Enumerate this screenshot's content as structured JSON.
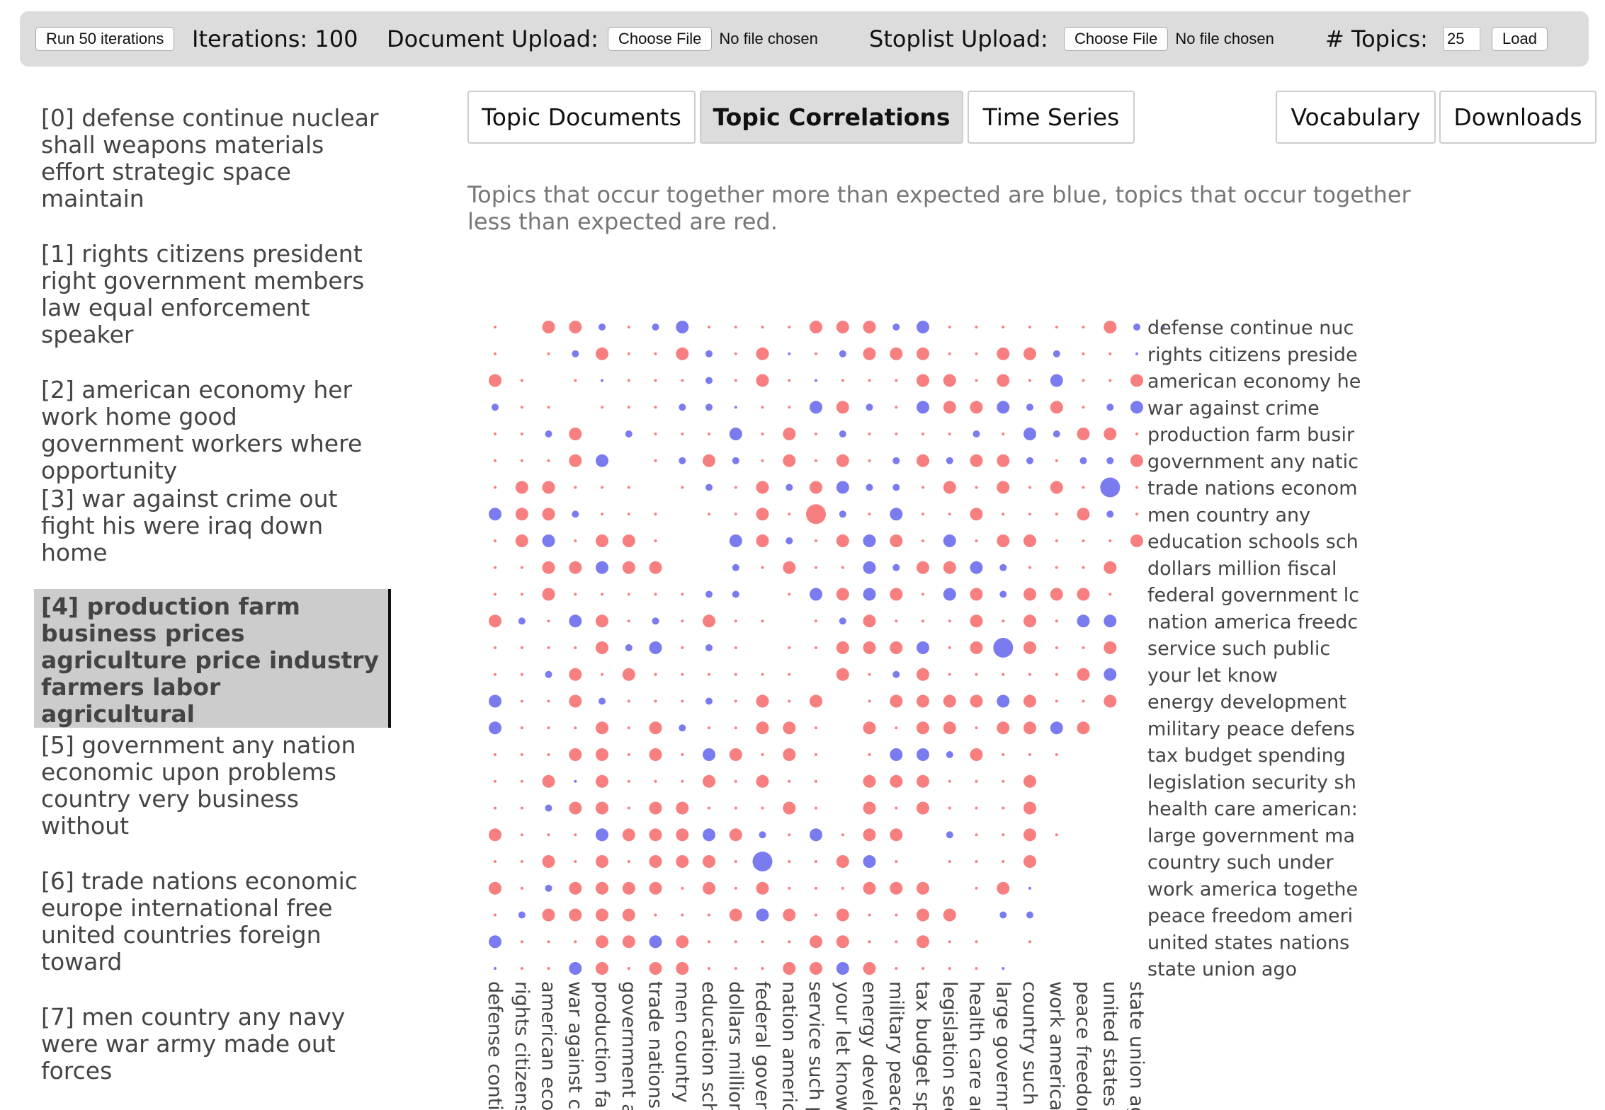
{
  "controls": {
    "run_button": "Run 50 iterations",
    "iterations_label": "Iterations: 100",
    "document_upload_label": "Document Upload:",
    "document_choose": "Choose File",
    "document_nofile": "No file chosen",
    "stoplist_upload_label": "Stoplist Upload:",
    "stoplist_choose": "Choose File",
    "stoplist_nofile": "No file chosen",
    "topics_label": "# Topics:",
    "topics_value": "25",
    "load_button": "Load"
  },
  "topics": [
    {
      "label": "[0] defense continue nuclear shall weapons materials effort strategic space maintain",
      "selected": false
    },
    {
      "label": "[1] rights citizens president right government members law equal enforcement speaker",
      "selected": false
    },
    {
      "label": "[2] american economy her work home good government workers where opportunity",
      "selected": false
    },
    {
      "label": "[3] war against crime out fight his were iraq down home",
      "selected": false
    },
    {
      "label": "[4] production farm business prices agriculture price industry farmers labor agricultural",
      "selected": true
    },
    {
      "label": "[5] government any nation economic upon problems country very business without",
      "selected": false
    },
    {
      "label": "[6] trade nations economic europe international free united countries foreign toward",
      "selected": false
    },
    {
      "label": "[7] men country any navy were war army made out forces",
      "selected": false
    }
  ],
  "tabs": {
    "topic_documents": "Topic Documents",
    "topic_correlations": "Topic Correlations",
    "time_series": "Time Series",
    "vocabulary": "Vocabulary",
    "downloads": "Downloads"
  },
  "description": "Topics that occur together more than expected are blue, topics that occur together less than expected are red.",
  "chart_data": {
    "type": "heatmap",
    "colors": {
      "positive": "#7b7bf0",
      "negative": "#f77f7f"
    },
    "row_labels": [
      "defense continue nuc",
      "rights citizens preside",
      "american economy he",
      "war against crime",
      "production farm busir",
      "government any natic",
      "trade nations econom",
      "men country any",
      "education schools sch",
      "dollars million fiscal",
      "federal government lc",
      "nation america freedc",
      "service such public",
      "your let know",
      "energy development",
      "military peace defens",
      "tax budget spending",
      "legislation security sh",
      "health care american:",
      "large government ma",
      "country such under",
      "work america togethe",
      "peace freedom ameri",
      "united states nations",
      "state union ago"
    ],
    "col_labels": [
      "defense contin",
      "rights citizens",
      "american econ",
      "war against cr",
      "production far",
      "government an",
      "trade nations e",
      "men country a",
      "education scho",
      "dollars million",
      "federal govern",
      "nation america",
      "service such p",
      "your let know",
      "energy develo",
      "military peace",
      "tax budget spe",
      "legislation sec",
      "health care am",
      "large governm",
      "country such u",
      "work america",
      "peace freedor",
      "united states r",
      "state union ag"
    ],
    "magnitude_scale": [
      0,
      1,
      2,
      3
    ],
    "cells": [
      "-3p.-2n-2n+1n-1p+1n+2n-1p-1p-1p-1p-2n-2n-2n+1n+2n-1p-1p-3p-1p-1p-1p-2n+1n+1p",
      "-3p.-1p+1n-2n-1p-1p-2n+1n-1p-2n+1p-1p+1n-2n-2n-2n-1p-1p-2n-2n+1n-1p-1p+1p",
      "-2n-1p.-1p+1p-1p-1p-1p+1n-1p-2n-1p+1p-3p-1p-1p-2n-2n-1p-2n-1p+2n-1p-1p-2n",
      "+1n-1p-1p.-1p-1p-1p+1n+1n+1p-1p-1p+2n-2n+1n-1p+2n-2n-2n+2n+1n-2n-1p+1n+2n",
      "-1p-3p+1n-2n.+1n-1p-1p-1p+2n-1p-2n-3p+1n-3p-1p-1p-1p+1n-3p+2n+1n-2n-2n-3p",
      "-1p-1p-1p-2n+2n.-1p+1n-2n+1n-1p-2n-1p-2n-1p+1n-2n+1n-2n-2n+1n-1p+1n+1n-2n",
      "-1p-2n-2n-1p-1p-1p.-1p+1n-3p-2n+1n-2n+2n+1n+1n-3p-2n-3p-2n-1p-2n-1p+3n-1p",
      "+2n-2n-2n+1n-1p-1p-1p.-1p-1p-2n-1p-3n+1n-1p+2n-3p-1p-2n-1p-1p-1p-2n+1n-1p",
      "-1p-2n+2n-1p-2n-2n-1p..+2n-2n+1n-1p-2n+2n-2n-1p+2n-1p-2n-2n-1p-3p-3p-2n",
      "-1p-3p-2n-2n+2n-2n-2n..+1n-3p-2n-1p-1p+2n+1n-2n-2n+2n+1n-3p-3p-3p-2n",
      "-1p-1p-2n-1p-1p-1p-1p-1p+1n+1n.-3p+2n-2n+2n-2n-1p+2n-2n+1n-2n-2n-2n-3p",
      "-2n+1n-1p+2n-2n-1p+1n-1p-2n-3p-3p.-3p+1n-2n-1p-3p-3p-2n-3p-2n-1p+2n+2n",
      "-3p-1p-3p-3p-2n+1n+2n-1p+1n-3p.-3p-1p-2n-2n-2n+2n-3p-2n+3n-2n-1p-1p-2n",
      "-3p-1p+1n-2n-3p-2n-1p-3p-3p-1p-3p-1p.-2n-1p+1n-2n-1p-3p-3p-1p-1p-2n+2n",
      "+2n-1p-1p-2n+1n-1p-1p-1p+1n-3p-2n-1p-2n.-3p-2n-2n-2n-2n+2n-2n-1p-1p-2n",
      "+2n-1p-1p-1p-2n-1p-2n+1n-3p-3p-2n-2n-3p.-2n-1p-2n-2n-1p-2n-2n+2n-2n",
      "-1p-1p-1p-2n-2n-1p-2n-3p+2n-2n-3p-2n-1p.-1p+2n+2n+1n-2n-1p-3p-3p",
      "-1p-1p-2n+1p-2n-1p-1p-1p-2n-3p-2n-1p-1p.-2n-2n-2n-1p-1p-1p-2n",
      "-3p-1p+1n-2n-2n-3p-2n-2n-1p-3p-3p-2n-3p.-2n-1p-2n-1p-1p-3p-2n",
      "-2n-3p-3p-3p+2n-2n-2n-2n+2n-2n+1n-3p+2n-3p-2n-2n.+1n-3p-3p-2n-3p",
      "-1p-1p-2n-1p-2n-1p-2n-2n-2n-1p+3n-3p-1p-2n+2n-1p.-3p-1p-1p-2n",
      "-2n-1p+1n-2n-2n-2n-2n-1p-2n-3p-2n-1p-3p-1p-2n-2n-2n.-1p-2n+1p",
      "-1p+1n-2n-2n-2n-2n-1p-3p-3p-2n+2n-2n-3p-2n-3p-1p-2n-2n.+1n+1n",
      "+2n-1p-1p-1p-2n-2n+2n-2n-3p-3p-1p-1p-2n-2n-1p-3p-2n-3p-3p.-1p",
      "+1p-1p-1p+2n-2n-3p-2n-2n-3p-3p-3p-2n-2n+2n-2n-3p-3p-3p-1p+1p."
    ]
  }
}
